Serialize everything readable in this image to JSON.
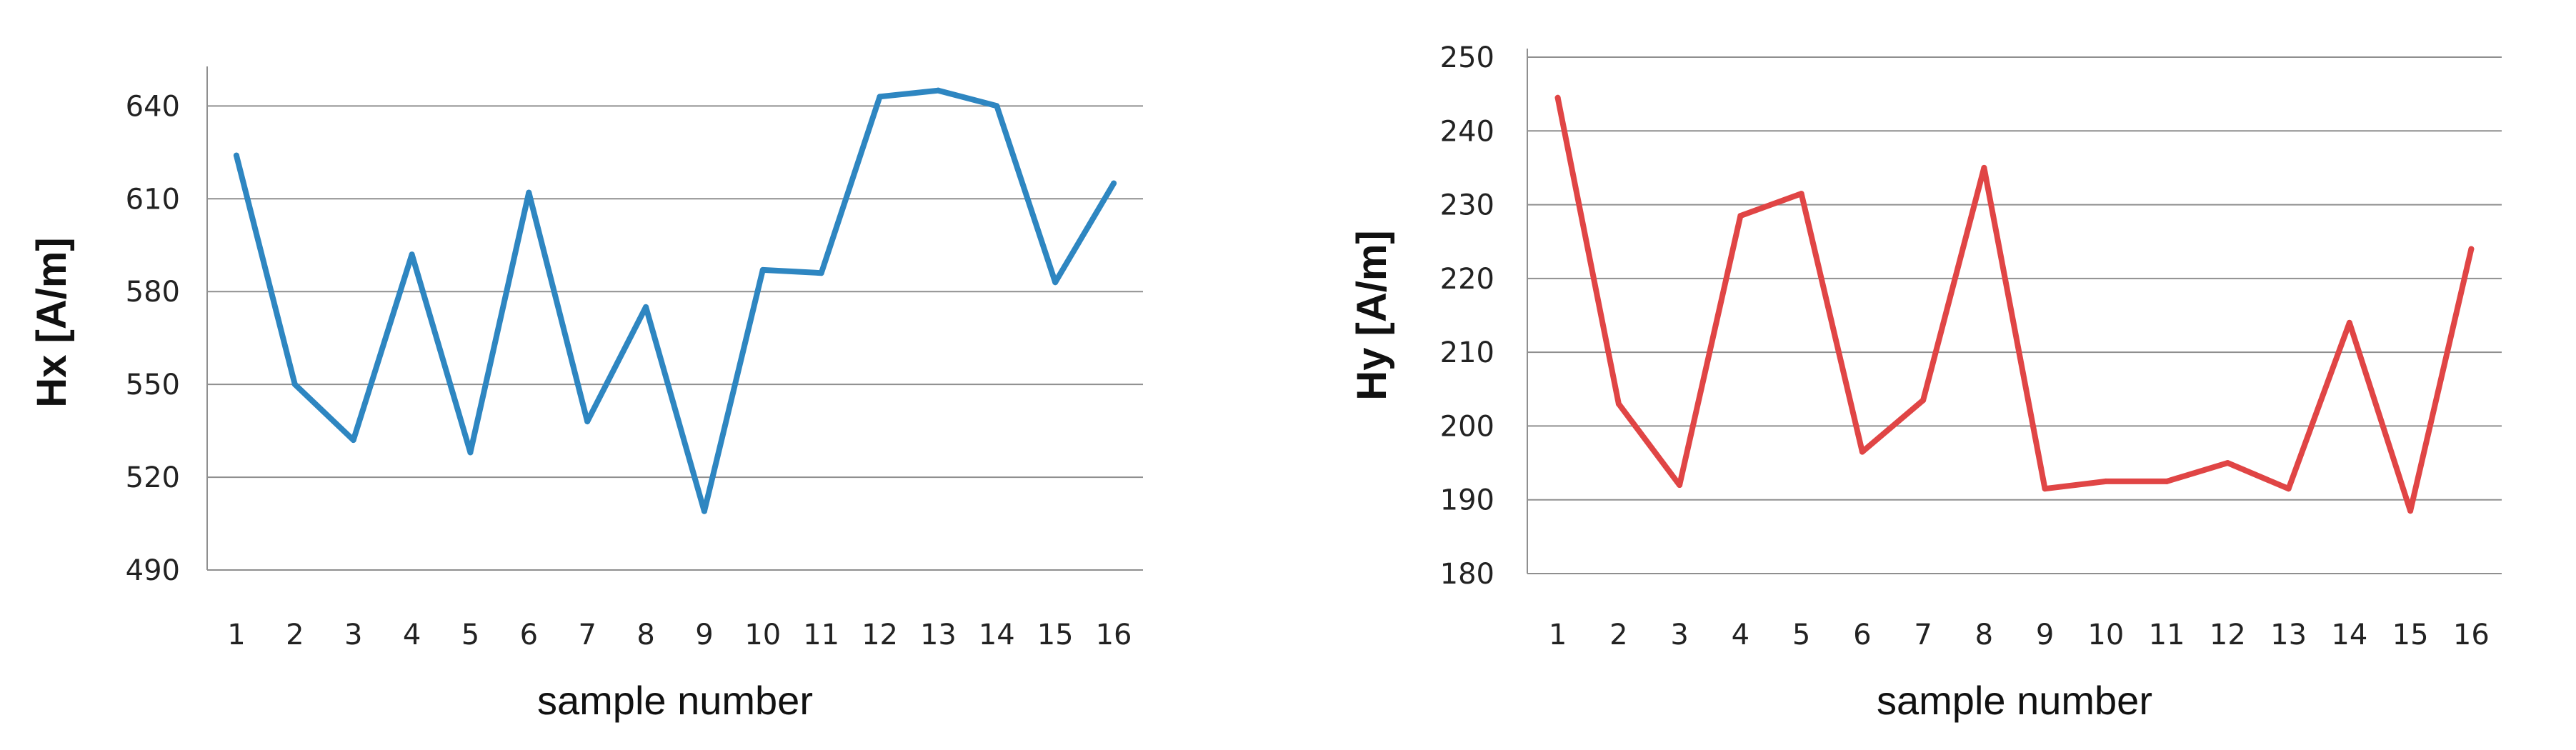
{
  "chart_data": [
    {
      "type": "line",
      "categories": [
        "1",
        "2",
        "3",
        "4",
        "5",
        "6",
        "7",
        "8",
        "9",
        "10",
        "11",
        "12",
        "13",
        "14",
        "15",
        "16"
      ],
      "series": [
        {
          "values": [
            624,
            550,
            532,
            592,
            528,
            612,
            538,
            575,
            509,
            587,
            586,
            643,
            645,
            640,
            583,
            615
          ],
          "color": "#2e86c1"
        }
      ],
      "yticks": [
        "490",
        "520",
        "550",
        "580",
        "610",
        "640"
      ],
      "xlabel": "sample number",
      "ylabel": "Hx [A/m]",
      "ylim": [
        490,
        650
      ],
      "grid": true,
      "legend": "none"
    },
    {
      "type": "line",
      "categories": [
        "1",
        "2",
        "3",
        "4",
        "5",
        "6",
        "7",
        "8",
        "9",
        "10",
        "11",
        "12",
        "13",
        "14",
        "15",
        "16"
      ],
      "series": [
        {
          "values": [
            244.5,
            203,
            192,
            228.5,
            231.5,
            196.5,
            203.5,
            235,
            191.5,
            192.5,
            192.5,
            195,
            191.5,
            214,
            188.5,
            224
          ],
          "color": "#e04545"
        }
      ],
      "yticks": [
        "180",
        "190",
        "200",
        "210",
        "220",
        "230",
        "240",
        "250"
      ],
      "xlabel": "sample number",
      "ylabel": "Hy [A/m]",
      "ylim": [
        180,
        250
      ],
      "grid": true,
      "legend": "none"
    }
  ]
}
